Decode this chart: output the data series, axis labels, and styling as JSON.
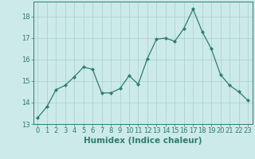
{
  "x": [
    0,
    1,
    2,
    3,
    4,
    5,
    6,
    7,
    8,
    9,
    10,
    11,
    12,
    13,
    14,
    15,
    16,
    17,
    18,
    19,
    20,
    21,
    22,
    23
  ],
  "y": [
    13.3,
    13.8,
    14.6,
    14.8,
    15.2,
    15.65,
    15.55,
    14.45,
    14.45,
    14.65,
    15.25,
    14.85,
    16.05,
    16.95,
    17.0,
    16.85,
    17.45,
    18.35,
    17.3,
    16.5,
    15.3,
    14.8,
    14.5,
    14.1
  ],
  "line_color": "#2e7d6e",
  "marker": "D",
  "marker_size": 2,
  "bg_color": "#cceae7",
  "grid_color": "#aacfcb",
  "axis_color": "#2e7d6e",
  "xlabel": "Humidex (Indice chaleur)",
  "xlabel_fontsize": 7.5,
  "tick_fontsize": 6,
  "xlim": [
    -0.5,
    23.5
  ],
  "ylim": [
    13.0,
    18.7
  ],
  "yticks": [
    13,
    14,
    15,
    16,
    17,
    18
  ],
  "xticks": [
    0,
    1,
    2,
    3,
    4,
    5,
    6,
    7,
    8,
    9,
    10,
    11,
    12,
    13,
    14,
    15,
    16,
    17,
    18,
    19,
    20,
    21,
    22,
    23
  ]
}
